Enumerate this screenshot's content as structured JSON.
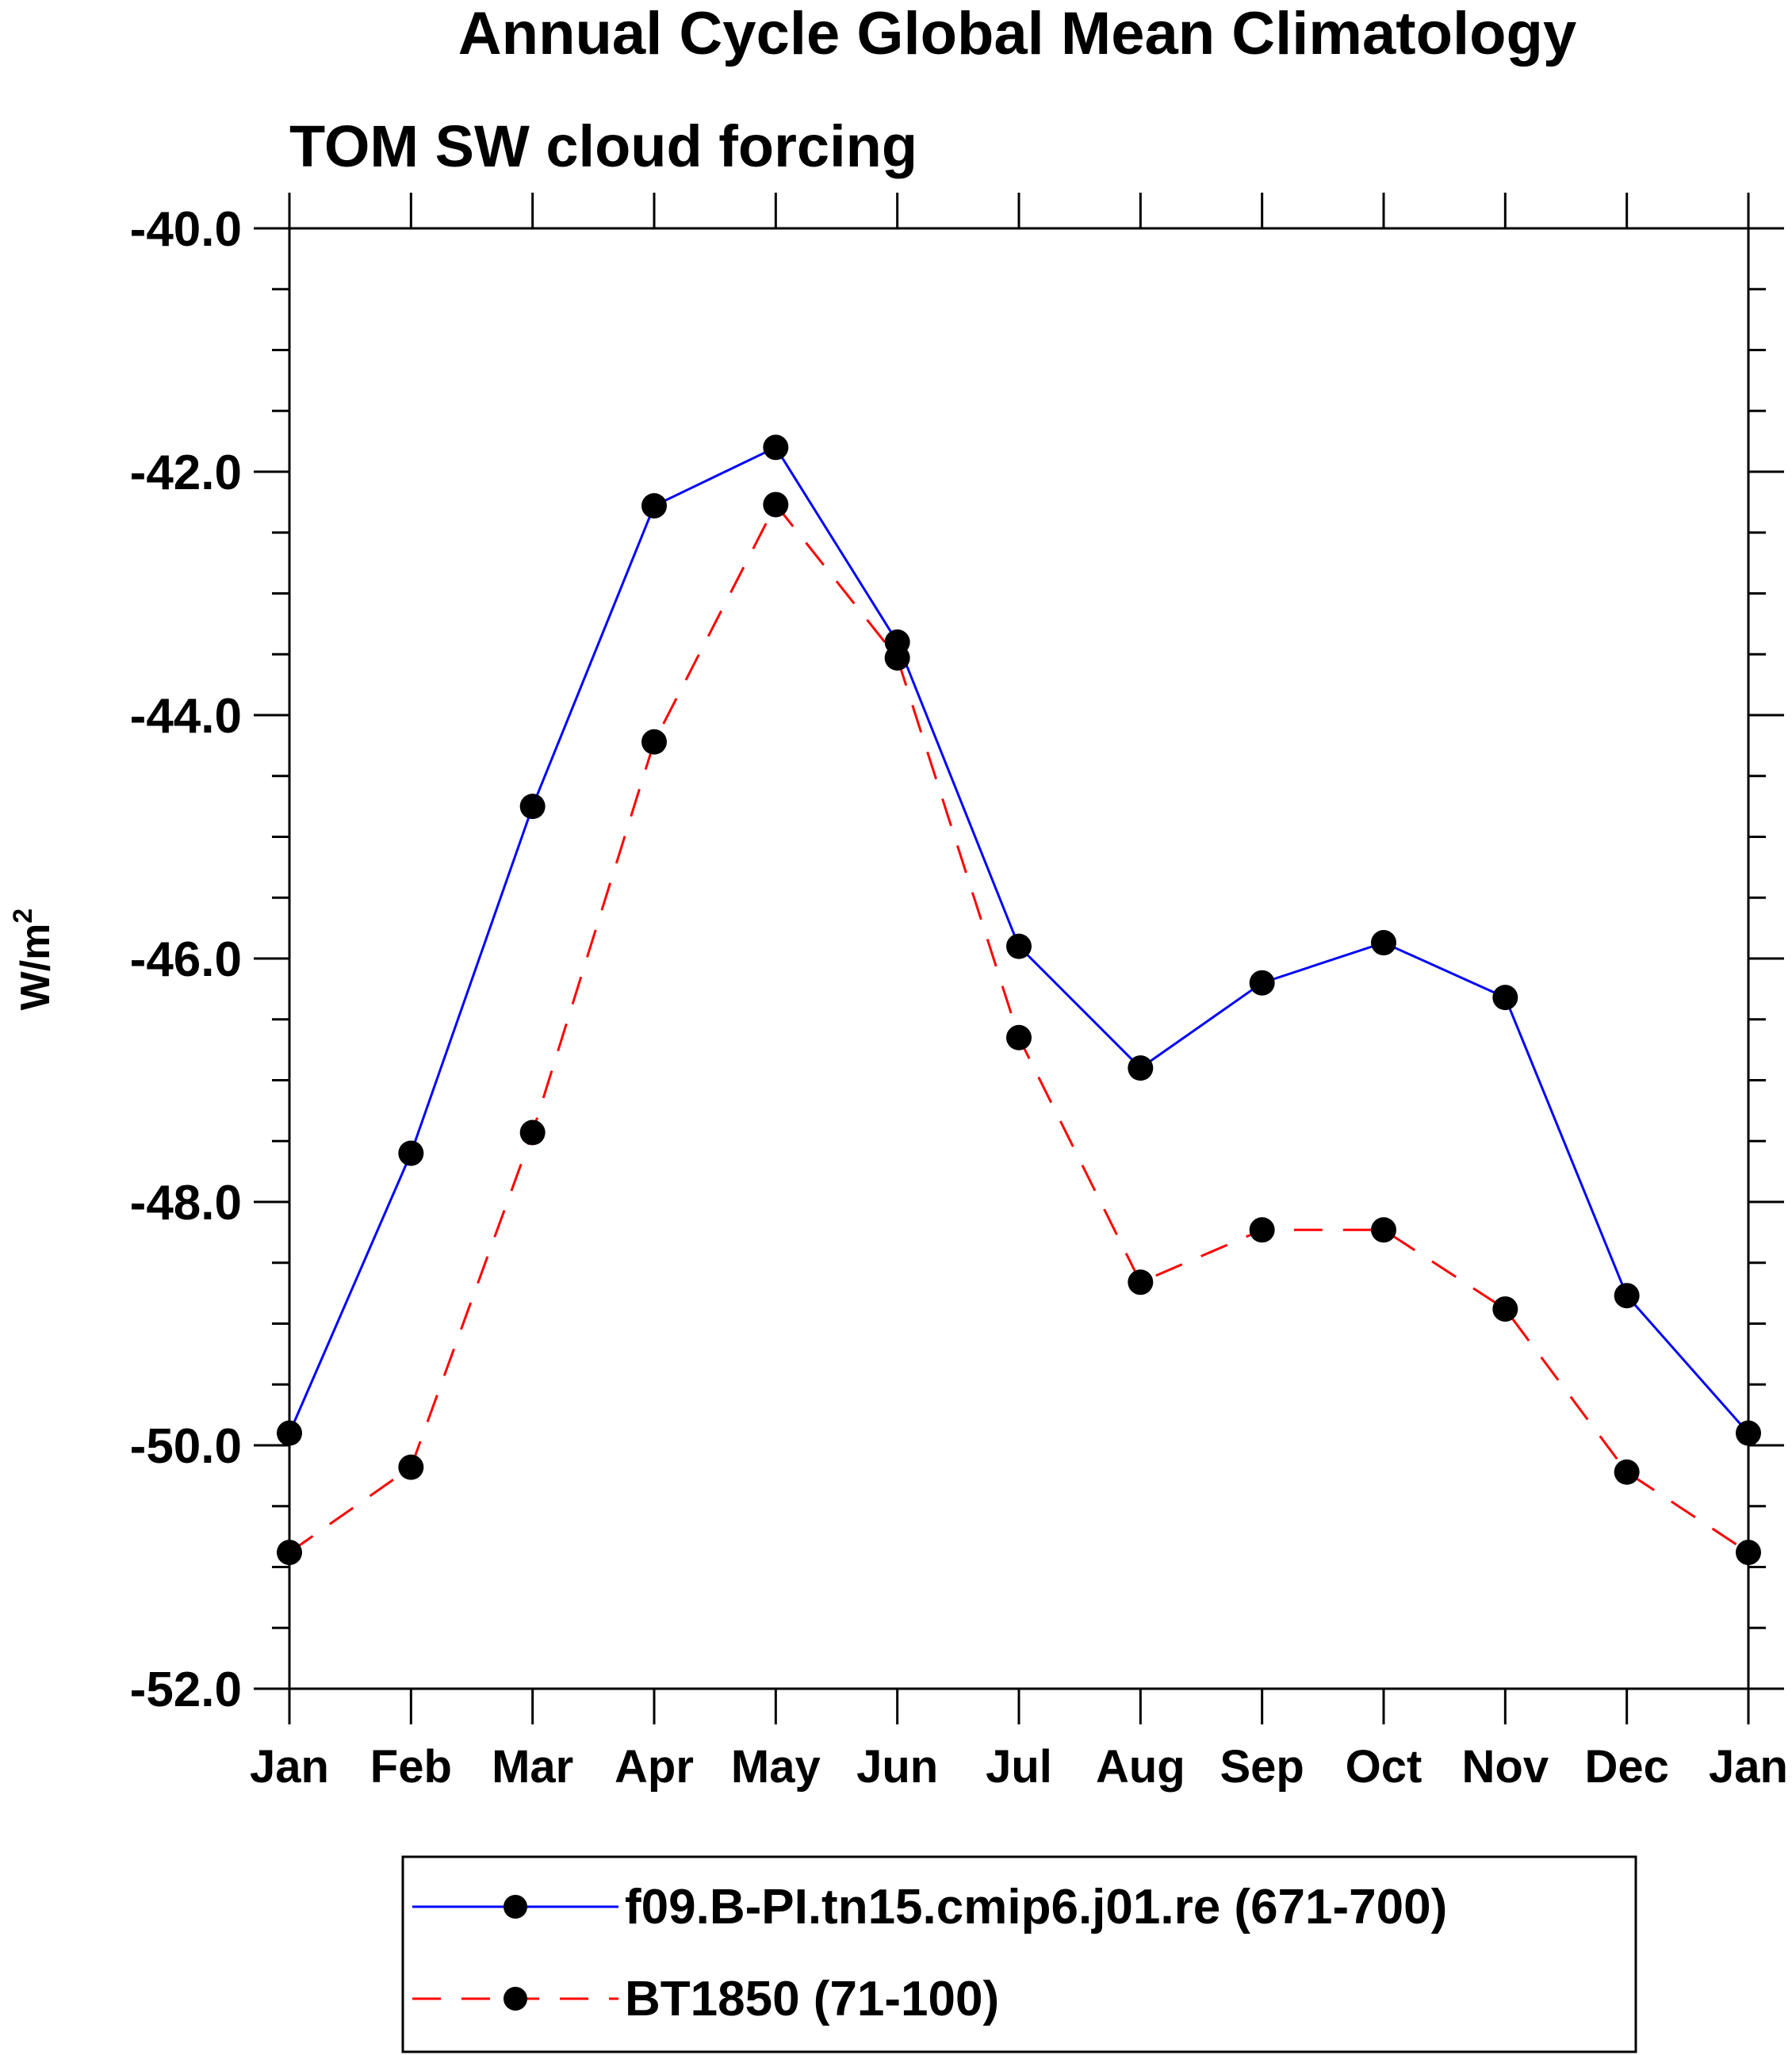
{
  "chart_data": {
    "type": "line",
    "title": "Annual Cycle Global Mean Climatology",
    "subtitle": "TOM SW cloud forcing",
    "ylabel": "W/m",
    "ylabel_superscript": "2",
    "xlabel": "",
    "categories": [
      "Jan",
      "Feb",
      "Mar",
      "Apr",
      "May",
      "Jun",
      "Jul",
      "Aug",
      "Sep",
      "Oct",
      "Nov",
      "Dec",
      "Jan"
    ],
    "ylim": [
      -52.0,
      -40.0
    ],
    "yticks": [
      -40.0,
      -42.0,
      -44.0,
      -46.0,
      -48.0,
      -50.0,
      -52.0
    ],
    "ytick_labels": [
      "-40.0",
      "-42.0",
      "-44.0",
      "-46.0",
      "-48.0",
      "-50.0",
      "-52.0"
    ],
    "yminor_step": 0.5,
    "grid": false,
    "legend_position": "bottom-center",
    "series": [
      {
        "name": "f09.B-PI.tn15.cmip6.j01.re (671-700)",
        "color": "#0000ff",
        "dash": "solid",
        "values": [
          -49.9,
          -47.6,
          -44.75,
          -42.28,
          -41.8,
          -43.4,
          -45.9,
          -46.9,
          -46.2,
          -45.87,
          -46.32,
          -48.77,
          -49.9
        ]
      },
      {
        "name": "BT1850 (71-100)",
        "color": "#ff0000",
        "dash": "dashed",
        "values": [
          -50.88,
          -50.18,
          -47.43,
          -44.22,
          -42.27,
          -43.53,
          -46.65,
          -48.66,
          -48.23,
          -48.23,
          -48.88,
          -50.22,
          -50.88
        ]
      }
    ]
  }
}
